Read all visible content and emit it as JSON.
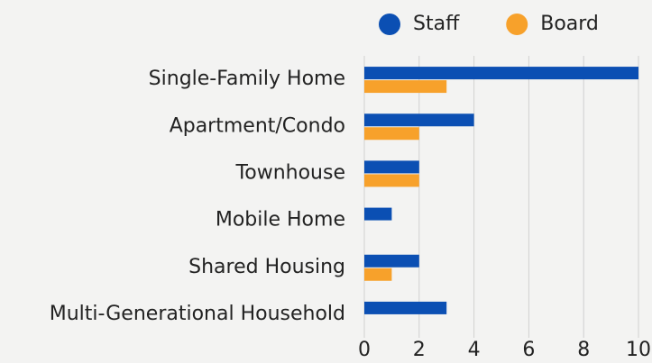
{
  "chart_data": {
    "type": "bar",
    "orientation": "horizontal",
    "categories": [
      "Single-Family Home",
      "Apartment/Condo",
      "Townhouse",
      "Mobile Home",
      "Shared Housing",
      "Multi-Generational Household"
    ],
    "series": [
      {
        "name": "Staff",
        "color": "#0b4fb3",
        "values": [
          10,
          4,
          2,
          1,
          2,
          3
        ]
      },
      {
        "name": "Board",
        "color": "#f7a12b",
        "values": [
          3,
          2,
          2,
          0,
          1,
          0
        ]
      }
    ],
    "xlim": [
      0,
      10
    ],
    "xticks": [
      0,
      2,
      4,
      6,
      8,
      10
    ],
    "grid": true,
    "legend": "top"
  }
}
